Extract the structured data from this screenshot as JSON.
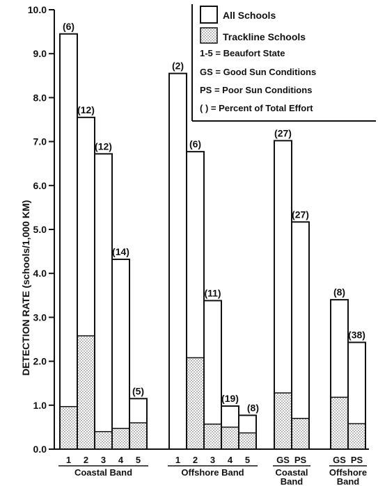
{
  "chart_data": {
    "type": "bar",
    "ylabel": "DETECTION RATE (schools/1,000 KM)",
    "ylim": [
      0,
      10
    ],
    "yticks": [
      "0.0",
      "1.0",
      "2.0",
      "3.0",
      "4.0",
      "5.0",
      "6.0",
      "7.0",
      "8.0",
      "9.0",
      "10.0"
    ],
    "legend": {
      "placement": "top-right",
      "entries": [
        {
          "name": "All Schools",
          "fill": "#ffffff"
        },
        {
          "name": "Trackline Schools",
          "fill": "dotted"
        }
      ],
      "notes": [
        "1-5 = Beaufort State",
        "GS = Good Sun Conditions",
        "PS = Poor Sun Conditions",
        "(  ) = Percent of Total Effort"
      ]
    },
    "groups": [
      {
        "label": "Coastal Band",
        "bars": [
          {
            "category": "1",
            "all": 9.45,
            "trackline": 0.97,
            "pct": "(6)"
          },
          {
            "category": "2",
            "all": 7.55,
            "trackline": 2.58,
            "pct": "(12)"
          },
          {
            "category": "3",
            "all": 6.72,
            "trackline": 0.4,
            "pct": "(12)"
          },
          {
            "category": "4",
            "all": 4.32,
            "trackline": 0.47,
            "pct": "(14)"
          },
          {
            "category": "5",
            "all": 1.15,
            "trackline": 0.6,
            "pct": "(5)"
          }
        ]
      },
      {
        "label": "Offshore Band",
        "bars": [
          {
            "category": "1",
            "all": 8.55,
            "trackline": 0,
            "pct": "(2)"
          },
          {
            "category": "2",
            "all": 6.77,
            "trackline": 2.08,
            "pct": "(6)"
          },
          {
            "category": "3",
            "all": 3.38,
            "trackline": 0.57,
            "pct": "(11)"
          },
          {
            "category": "4",
            "all": 0.98,
            "trackline": 0.5,
            "pct": "(19)"
          },
          {
            "category": "5",
            "all": 0.77,
            "trackline": 0.37,
            "pct": "(8)"
          }
        ]
      },
      {
        "label": "Coastal Band",
        "bars": [
          {
            "category": "GS",
            "all": 7.02,
            "trackline": 1.28,
            "pct": "(27)"
          },
          {
            "category": "PS",
            "all": 5.17,
            "trackline": 0.7,
            "pct": "(27)"
          }
        ]
      },
      {
        "label": "Offshore Band",
        "bars": [
          {
            "category": "GS",
            "all": 3.4,
            "trackline": 1.18,
            "pct": "(8)"
          },
          {
            "category": "PS",
            "all": 2.43,
            "trackline": 0.58,
            "pct": "(38)"
          }
        ]
      }
    ]
  }
}
